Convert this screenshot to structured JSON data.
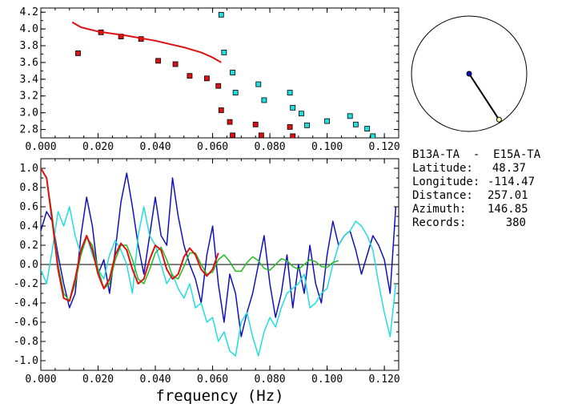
{
  "station_pair": "B13A-TA  -  E15A-TA",
  "info": [
    {
      "label": "Latitude:",
      "value": "48.37"
    },
    {
      "label": "Longitude:",
      "value": "-114.47"
    },
    {
      "label": "Distance:",
      "value": "257.01"
    },
    {
      "label": "Azimuth:",
      "value": "146.85"
    },
    {
      "label": "Records:",
      "value": "380"
    }
  ],
  "colors": {
    "red": "#dd1111",
    "cyan": "#22dddd",
    "blue": "#1111bb",
    "green": "#22bb22",
    "black": "#000000"
  },
  "chart_data": [
    {
      "type": "scatter",
      "xlim": [
        0.0,
        0.125
      ],
      "ylim": [
        2.7,
        4.25
      ],
      "xticks": [
        "0.000",
        "0.020",
        "0.040",
        "0.060",
        "0.080",
        "0.100",
        "0.120"
      ],
      "yticks": [
        "2.8",
        "3.0",
        "3.2",
        "3.4",
        "3.6",
        "3.8",
        "4.0",
        "4.2"
      ],
      "xlabel": "",
      "ylabel": "",
      "grid": false,
      "series": [
        {
          "color": "red",
          "marker": "square",
          "x": [
            0.013,
            0.021,
            0.028,
            0.035,
            0.041,
            0.047,
            0.052,
            0.058,
            0.062,
            0.063,
            0.066,
            0.067,
            0.075,
            0.077,
            0.087,
            0.088
          ],
          "y": [
            3.71,
            3.96,
            3.91,
            3.88,
            3.62,
            3.58,
            3.44,
            3.41,
            3.32,
            3.03,
            2.89,
            2.73,
            2.86,
            2.73,
            2.83,
            2.72
          ]
        },
        {
          "color": "cyan",
          "marker": "square",
          "x": [
            0.063,
            0.064,
            0.067,
            0.068,
            0.076,
            0.078,
            0.087,
            0.088,
            0.091,
            0.093,
            0.1,
            0.108,
            0.11,
            0.114,
            0.116
          ],
          "y": [
            4.17,
            3.72,
            3.48,
            3.24,
            3.34,
            3.15,
            3.24,
            3.06,
            2.99,
            2.85,
            2.9,
            2.96,
            2.86,
            2.81,
            2.72
          ]
        },
        {
          "color": "red",
          "marker": "line",
          "x": [
            0.011,
            0.014,
            0.02,
            0.03,
            0.04,
            0.05,
            0.056,
            0.06,
            0.063
          ],
          "y": [
            4.08,
            4.02,
            3.97,
            3.92,
            3.86,
            3.78,
            3.72,
            3.66,
            3.6
          ]
        }
      ]
    },
    {
      "type": "line",
      "xlim": [
        0.0,
        0.125
      ],
      "ylim": [
        -1.1,
        1.1
      ],
      "xticks": [
        "0.000",
        "0.020",
        "0.040",
        "0.060",
        "0.080",
        "0.100",
        "0.120"
      ],
      "yticks": [
        "-1.0",
        "-0.8",
        "-0.6",
        "-0.4",
        "-0.2",
        "0.0",
        "0.2",
        "0.4",
        "0.6",
        "0.8",
        "1.0"
      ],
      "xlabel": "frequency (Hz)",
      "ylabel": "",
      "grid": false,
      "zero_line": true,
      "series": [
        {
          "color": "blue",
          "x": [
            0,
            0.002,
            0.004,
            0.006,
            0.008,
            0.01,
            0.012,
            0.014,
            0.016,
            0.018,
            0.02,
            0.022,
            0.024,
            0.026,
            0.028,
            0.03,
            0.032,
            0.034,
            0.036,
            0.038,
            0.04,
            0.042,
            0.044,
            0.046,
            0.048,
            0.05,
            0.052,
            0.054,
            0.056,
            0.058,
            0.06,
            0.062,
            0.064,
            0.066,
            0.068,
            0.07,
            0.072,
            0.074,
            0.076,
            0.078,
            0.08,
            0.082,
            0.084,
            0.086,
            0.088,
            0.09,
            0.092,
            0.094,
            0.096,
            0.098,
            0.1,
            0.102,
            0.104,
            0.106,
            0.108,
            0.11,
            0.112,
            0.114,
            0.116,
            0.118,
            0.12,
            0.122,
            0.124
          ],
          "y": [
            0.35,
            0.55,
            0.45,
            0.1,
            -0.2,
            -0.45,
            -0.3,
            0.3,
            0.7,
            0.4,
            -0.1,
            0.05,
            -0.3,
            0.15,
            0.65,
            0.95,
            0.6,
            0.2,
            -0.1,
            0.3,
            0.7,
            0.3,
            0.2,
            0.9,
            0.5,
            0.2,
            0.0,
            -0.15,
            -0.4,
            0.1,
            0.4,
            -0.2,
            -0.6,
            -0.1,
            -0.3,
            -0.75,
            -0.5,
            -0.3,
            0.0,
            0.3,
            -0.2,
            -0.55,
            -0.3,
            0.1,
            -0.45,
            0.0,
            -0.3,
            0.2,
            -0.2,
            -0.4,
            0.1,
            0.45,
            0.2,
            0.3,
            0.35,
            0.15,
            -0.1,
            0.1,
            0.3,
            0.2,
            0.05,
            -0.3,
            0.6
          ]
        },
        {
          "color": "cyan",
          "x": [
            0,
            0.002,
            0.004,
            0.006,
            0.008,
            0.01,
            0.012,
            0.014,
            0.016,
            0.018,
            0.02,
            0.022,
            0.024,
            0.026,
            0.028,
            0.03,
            0.032,
            0.034,
            0.036,
            0.038,
            0.04,
            0.042,
            0.044,
            0.046,
            0.048,
            0.05,
            0.052,
            0.054,
            0.056,
            0.058,
            0.06,
            0.062,
            0.064,
            0.066,
            0.068,
            0.07,
            0.072,
            0.074,
            0.076,
            0.078,
            0.08,
            0.082,
            0.084,
            0.086,
            0.088,
            0.09,
            0.092,
            0.094,
            0.096,
            0.098,
            0.1,
            0.102,
            0.104,
            0.106,
            0.108,
            0.11,
            0.112,
            0.114,
            0.116,
            0.118,
            0.12,
            0.122,
            0.124
          ],
          "y": [
            -0.05,
            -0.2,
            0.15,
            0.55,
            0.4,
            0.6,
            0.3,
            0.1,
            0.3,
            0.1,
            -0.05,
            -0.15,
            0.1,
            0.25,
            0.15,
            0.0,
            -0.3,
            0.3,
            0.6,
            0.3,
            0.2,
            0.0,
            -0.2,
            -0.1,
            -0.25,
            -0.35,
            -0.2,
            -0.45,
            -0.4,
            -0.6,
            -0.55,
            -0.8,
            -0.7,
            -0.9,
            -0.95,
            -0.6,
            -0.5,
            -0.75,
            -0.95,
            -0.7,
            -0.55,
            -0.65,
            -0.45,
            -0.3,
            -0.25,
            -0.2,
            -0.1,
            -0.45,
            -0.4,
            -0.3,
            -0.25,
            0.0,
            0.2,
            0.3,
            0.35,
            0.45,
            0.4,
            0.3,
            0.15,
            -0.2,
            -0.5,
            -0.75,
            -0.2
          ]
        },
        {
          "color": "green",
          "x": [
            0,
            0.002,
            0.004,
            0.006,
            0.008,
            0.01,
            0.012,
            0.014,
            0.016,
            0.018,
            0.02,
            0.022,
            0.024,
            0.026,
            0.028,
            0.03,
            0.032,
            0.034,
            0.036,
            0.038,
            0.04,
            0.042,
            0.044,
            0.046,
            0.048,
            0.05,
            0.052,
            0.054,
            0.056,
            0.058,
            0.06,
            0.062,
            0.064,
            0.066,
            0.068,
            0.07,
            0.072,
            0.074,
            0.076,
            0.078,
            0.08,
            0.082,
            0.084,
            0.086,
            0.088,
            0.09,
            0.092,
            0.094,
            0.096,
            0.098,
            0.1,
            0.102,
            0.104
          ],
          "y": [
            1.0,
            0.9,
            0.5,
            0.0,
            -0.3,
            -0.38,
            -0.2,
            0.1,
            0.28,
            0.2,
            -0.05,
            -0.25,
            -0.2,
            0.05,
            0.2,
            0.2,
            0.05,
            -0.15,
            -0.2,
            -0.05,
            0.12,
            0.18,
            0.05,
            -0.12,
            -0.15,
            -0.02,
            0.12,
            0.12,
            0.0,
            -0.1,
            -0.08,
            0.05,
            0.1,
            0.03,
            -0.07,
            -0.07,
            0.02,
            0.08,
            0.04,
            -0.04,
            -0.06,
            0.0,
            0.06,
            0.04,
            -0.02,
            -0.05,
            0.0,
            0.05,
            0.03,
            -0.02,
            -0.03,
            0.02,
            0.04
          ]
        },
        {
          "color": "red",
          "x": [
            0,
            0.002,
            0.004,
            0.006,
            0.008,
            0.01,
            0.012,
            0.014,
            0.016,
            0.018,
            0.02,
            0.022,
            0.024,
            0.026,
            0.028,
            0.03,
            0.032,
            0.034,
            0.036,
            0.038,
            0.04,
            0.042,
            0.044,
            0.046,
            0.048,
            0.05,
            0.052,
            0.054,
            0.056,
            0.058,
            0.06,
            0.062
          ],
          "y": [
            1.0,
            0.9,
            0.45,
            -0.05,
            -0.35,
            -0.38,
            -0.15,
            0.15,
            0.3,
            0.15,
            -0.1,
            -0.25,
            -0.15,
            0.1,
            0.22,
            0.15,
            -0.05,
            -0.2,
            -0.15,
            0.05,
            0.2,
            0.15,
            -0.05,
            -0.15,
            -0.1,
            0.08,
            0.17,
            0.1,
            -0.05,
            -0.12,
            -0.05,
            0.12
          ]
        }
      ]
    }
  ],
  "azimuth_plot": {
    "azimuth_deg": 146.85,
    "end_fraction": 0.95
  }
}
